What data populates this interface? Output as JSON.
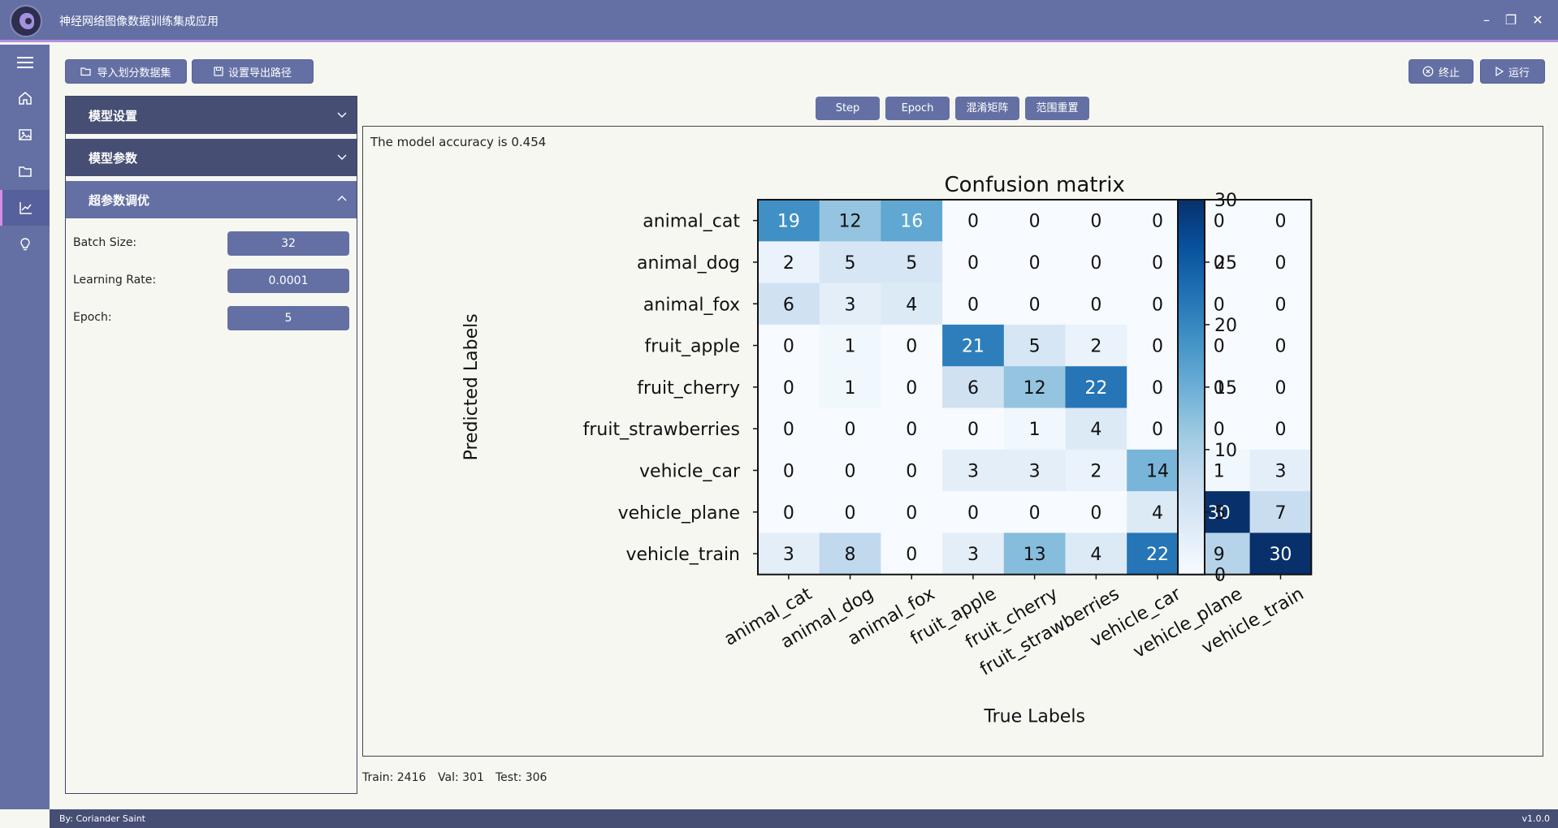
{
  "window": {
    "title": "神经网络图像数据训练集成应用",
    "minimize_glyph": "–",
    "restore_glyph": "❐",
    "close_glyph": "✕"
  },
  "sidebar": {
    "items": [
      {
        "name": "menu-icon"
      },
      {
        "name": "home-icon"
      },
      {
        "name": "image-icon"
      },
      {
        "name": "folder-icon"
      },
      {
        "name": "chart-icon",
        "active": true
      },
      {
        "name": "lightbulb-icon"
      }
    ]
  },
  "toolbar": {
    "import_label": "导入划分数据集",
    "export_label": "设置导出路径",
    "stop_label": "终止",
    "run_label": "运行"
  },
  "panel": {
    "sections": [
      {
        "title": "模型设置",
        "expanded": false
      },
      {
        "title": "模型参数",
        "expanded": false
      },
      {
        "title": "超参数调优",
        "expanded": true
      }
    ],
    "params": [
      {
        "label": "Batch Size:",
        "value": "32"
      },
      {
        "label": "Learning Rate:",
        "value": "0.0001"
      },
      {
        "label": "Epoch:",
        "value": "5"
      }
    ]
  },
  "chart_buttons": {
    "step": "Step",
    "epoch": "Epoch",
    "confusion": "混淆矩阵",
    "reset": "范围重置"
  },
  "accuracy_text": "The model accuracy is 0.454",
  "stats": {
    "train": "Train: 2416",
    "val": "Val: 301",
    "test": "Test: 306"
  },
  "statusbar": {
    "author": "By: Coriander Saint",
    "version": "v1.0.0"
  },
  "colors": {
    "accent": "#6470a4",
    "accent_dark": "#464e73",
    "highlight": "#b58fe0"
  },
  "chart_data": {
    "type": "heatmap",
    "title": "Confusion matrix",
    "xlabel": "True Labels",
    "ylabel": "Predicted Labels",
    "x_categories": [
      "animal_cat",
      "animal_dog",
      "animal_fox",
      "fruit_apple",
      "fruit_cherry",
      "fruit_strawberries",
      "vehicle_car",
      "vehicle_plane",
      "vehicle_train"
    ],
    "y_categories": [
      "animal_cat",
      "animal_dog",
      "animal_fox",
      "fruit_apple",
      "fruit_cherry",
      "fruit_strawberries",
      "vehicle_car",
      "vehicle_plane",
      "vehicle_train"
    ],
    "values": [
      [
        19,
        12,
        16,
        0,
        0,
        0,
        0,
        0,
        0
      ],
      [
        2,
        5,
        5,
        0,
        0,
        0,
        0,
        0,
        0
      ],
      [
        6,
        3,
        4,
        0,
        0,
        0,
        0,
        0,
        0
      ],
      [
        0,
        1,
        0,
        21,
        5,
        2,
        0,
        0,
        0
      ],
      [
        0,
        1,
        0,
        6,
        12,
        22,
        0,
        0,
        0
      ],
      [
        0,
        0,
        0,
        0,
        1,
        4,
        0,
        0,
        0
      ],
      [
        0,
        0,
        0,
        3,
        3,
        2,
        14,
        1,
        3
      ],
      [
        0,
        0,
        0,
        0,
        0,
        0,
        4,
        30,
        7
      ],
      [
        3,
        8,
        0,
        3,
        13,
        4,
        22,
        9,
        30
      ]
    ],
    "colorbar": {
      "min": 0,
      "max": 30,
      "ticks": [
        0,
        5,
        10,
        15,
        20,
        25,
        30
      ]
    },
    "colormap": "Blues"
  }
}
